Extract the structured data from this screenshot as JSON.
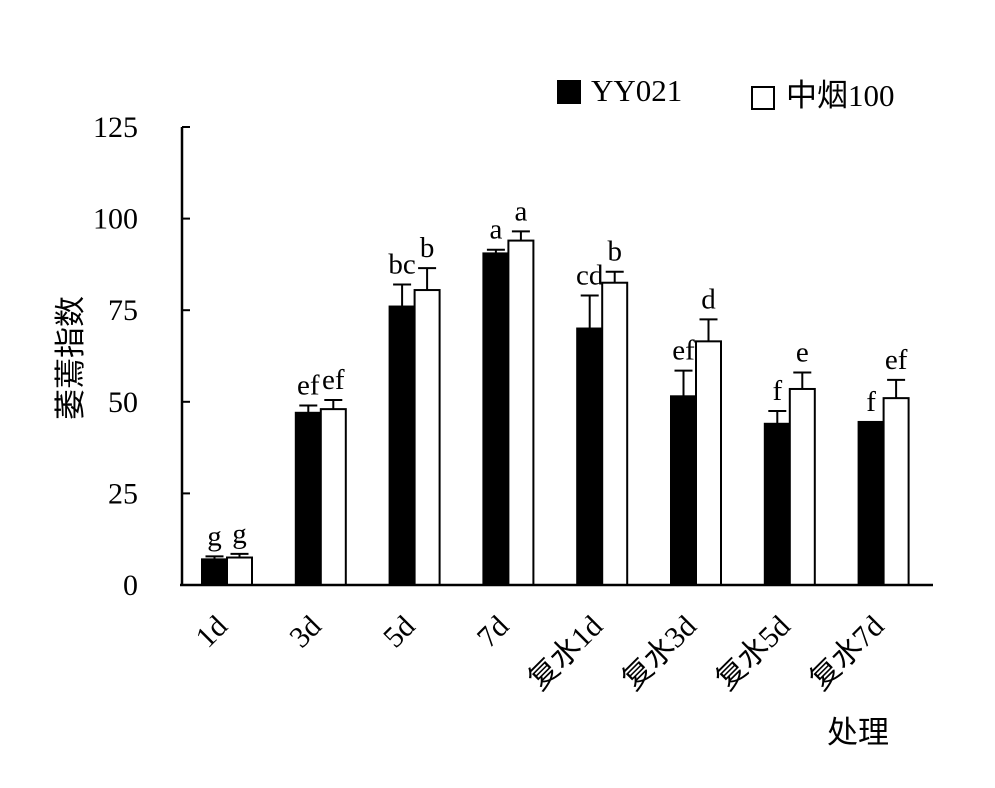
{
  "chart_data": {
    "type": "bar",
    "xlabel": "处理",
    "ylabel": "萎蔫指数",
    "ylim": [
      0,
      125
    ],
    "yticks": [
      0,
      25,
      50,
      75,
      100,
      125
    ],
    "grid": false,
    "legend_position": "top-right",
    "categories": [
      "1d",
      "3d",
      "5d",
      "7d",
      "复水1d",
      "复水3d",
      "复水5d",
      "复水7d"
    ],
    "series": [
      {
        "name": "YY021",
        "fill": "#000000",
        "values": [
          7,
          47,
          76,
          90.5,
          70,
          51.5,
          44,
          44.5
        ],
        "errors": [
          0.8,
          2,
          6,
          1,
          9,
          7,
          3.5,
          0
        ],
        "letters": [
          "g",
          "ef",
          "bc",
          "a",
          "cd",
          "ef",
          "f",
          "f"
        ]
      },
      {
        "name": "中烟100",
        "fill": "#ffffff",
        "values": [
          7.5,
          48,
          80.5,
          94,
          82.5,
          66.5,
          53.5,
          51
        ],
        "errors": [
          1,
          2.5,
          6,
          2.5,
          3,
          6,
          4.5,
          5
        ],
        "letters": [
          "g",
          "ef",
          "b",
          "a",
          "b",
          "d",
          "e",
          "ef"
        ]
      }
    ]
  }
}
